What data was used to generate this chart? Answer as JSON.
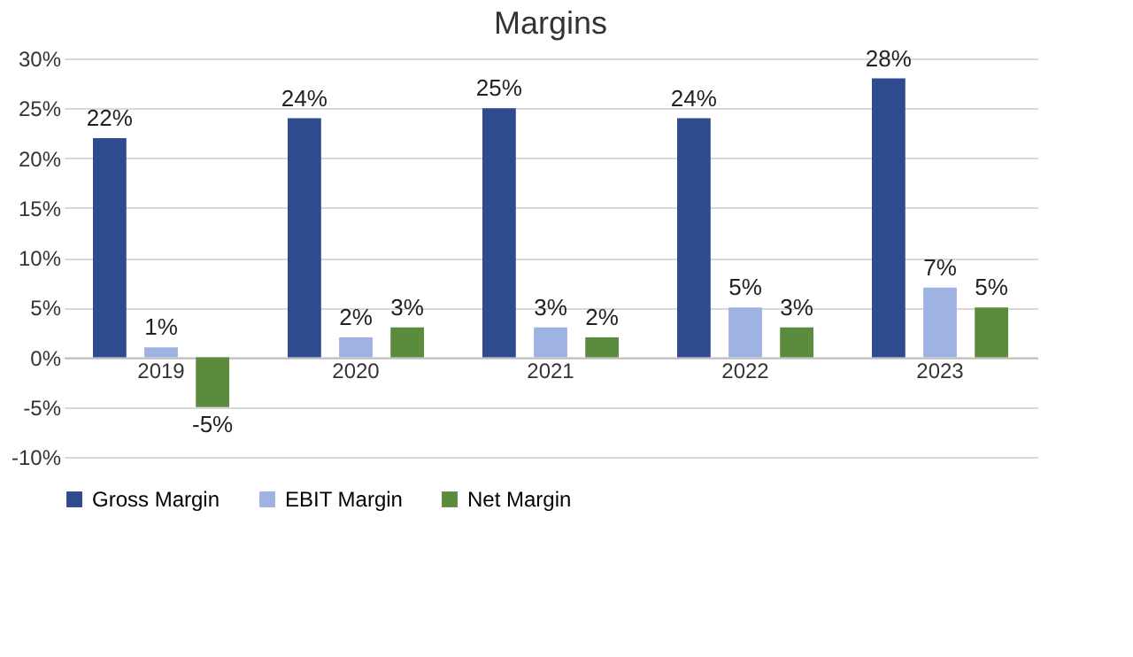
{
  "chart_data": {
    "type": "bar",
    "title": "Margins",
    "categories": [
      "2019",
      "2020",
      "2021",
      "2022",
      "2023"
    ],
    "series": [
      {
        "name": "Gross Margin",
        "color": "#2f4b8f",
        "values": [
          22,
          24,
          25,
          24,
          28
        ],
        "value_labels": [
          "22%",
          "24%",
          "25%",
          "24%",
          "28%"
        ]
      },
      {
        "name": "EBIT Margin",
        "color": "#9fb3e2",
        "values": [
          1,
          2,
          3,
          5,
          7
        ],
        "value_labels": [
          "1%",
          "2%",
          "3%",
          "5%",
          "7%"
        ]
      },
      {
        "name": "Net Margin",
        "color": "#5b8c3e",
        "values": [
          -5,
          3,
          2,
          3,
          5
        ],
        "value_labels": [
          "-5%",
          "3%",
          "2%",
          "3%",
          "5%"
        ]
      }
    ],
    "ylim": [
      -10,
      30
    ],
    "yticks": [
      {
        "value": -10,
        "label": "-10%"
      },
      {
        "value": -5,
        "label": "-5%"
      },
      {
        "value": 0,
        "label": "0%"
      },
      {
        "value": 5,
        "label": "5%"
      },
      {
        "value": 10,
        "label": "10%"
      },
      {
        "value": 15,
        "label": "15%"
      },
      {
        "value": 20,
        "label": "20%"
      },
      {
        "value": 25,
        "label": "25%"
      },
      {
        "value": 30,
        "label": "30%"
      }
    ],
    "grid": "y",
    "legend": "bottom"
  }
}
